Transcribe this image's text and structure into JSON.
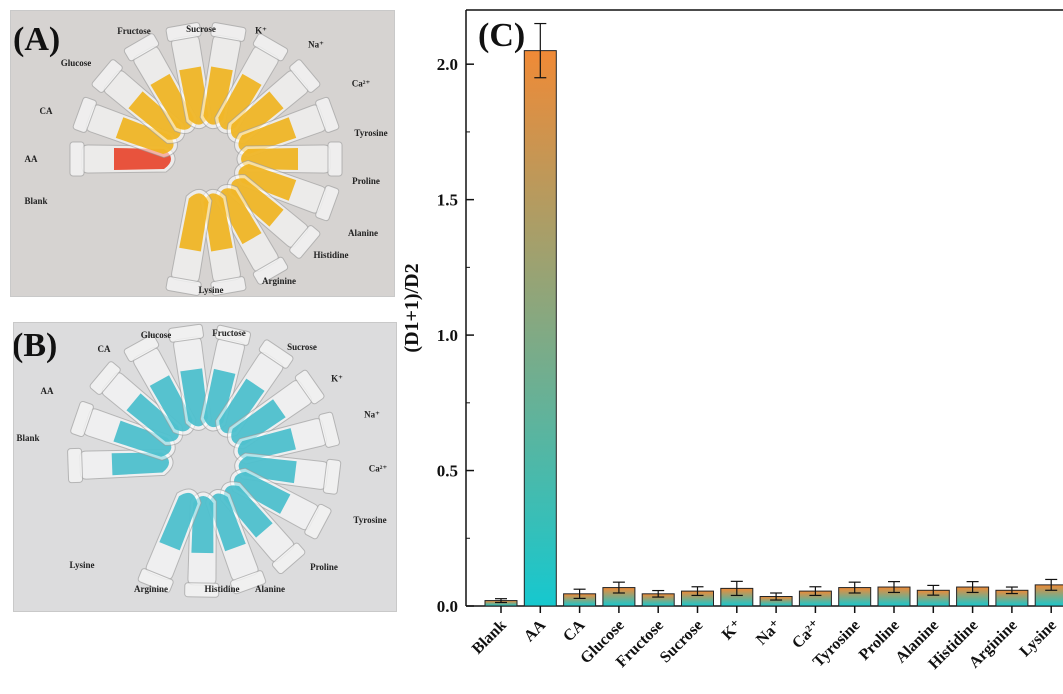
{
  "panel_a": {
    "label": "(A)",
    "tube_labels": [
      "Fructose",
      "Sucrose",
      "K⁺",
      "Na⁺",
      "Glucose",
      "Ca²⁺",
      "CA",
      "Tyrosine",
      "AA",
      "Proline",
      "Blank",
      "Alanine",
      "Histidine",
      "Arginine",
      "Lysine"
    ]
  },
  "panel_b": {
    "label": "(B)",
    "tube_labels": [
      "Glucose",
      "Fructose",
      "CA",
      "Sucrose",
      "K⁺",
      "AA",
      "Na⁺",
      "Blank",
      "Ca²⁺",
      "Tyrosine",
      "Lysine",
      "Proline",
      "Arginine",
      "Histidine",
      "Alanine"
    ]
  },
  "chart_data": {
    "type": "bar",
    "panel_label": "(C)",
    "title": "",
    "xlabel": "",
    "ylabel": "(D1+1)/D2",
    "categories": [
      "Blank",
      "AA",
      "CA",
      "Glucose",
      "Fructose",
      "Sucrose",
      "K⁺",
      "Na⁺",
      "Ca²⁺",
      "Tyrosine",
      "Proline",
      "Alanine",
      "Histidine",
      "Arginine",
      "Lysine"
    ],
    "values": [
      0.02,
      2.05,
      0.045,
      0.068,
      0.045,
      0.055,
      0.065,
      0.035,
      0.055,
      0.068,
      0.07,
      0.058,
      0.07,
      0.058,
      0.078
    ],
    "errors": [
      0.007,
      0.1,
      0.017,
      0.02,
      0.012,
      0.016,
      0.026,
      0.013,
      0.016,
      0.02,
      0.02,
      0.018,
      0.02,
      0.012,
      0.02
    ],
    "ylim": [
      0,
      2.2
    ],
    "yticks": [
      "0.0",
      "0.5",
      "1.0",
      "1.5",
      "2.0"
    ],
    "bar_gradient": {
      "top": "#f08a36",
      "bottom": "#16c8cf"
    },
    "grid": false,
    "legend": "none"
  }
}
